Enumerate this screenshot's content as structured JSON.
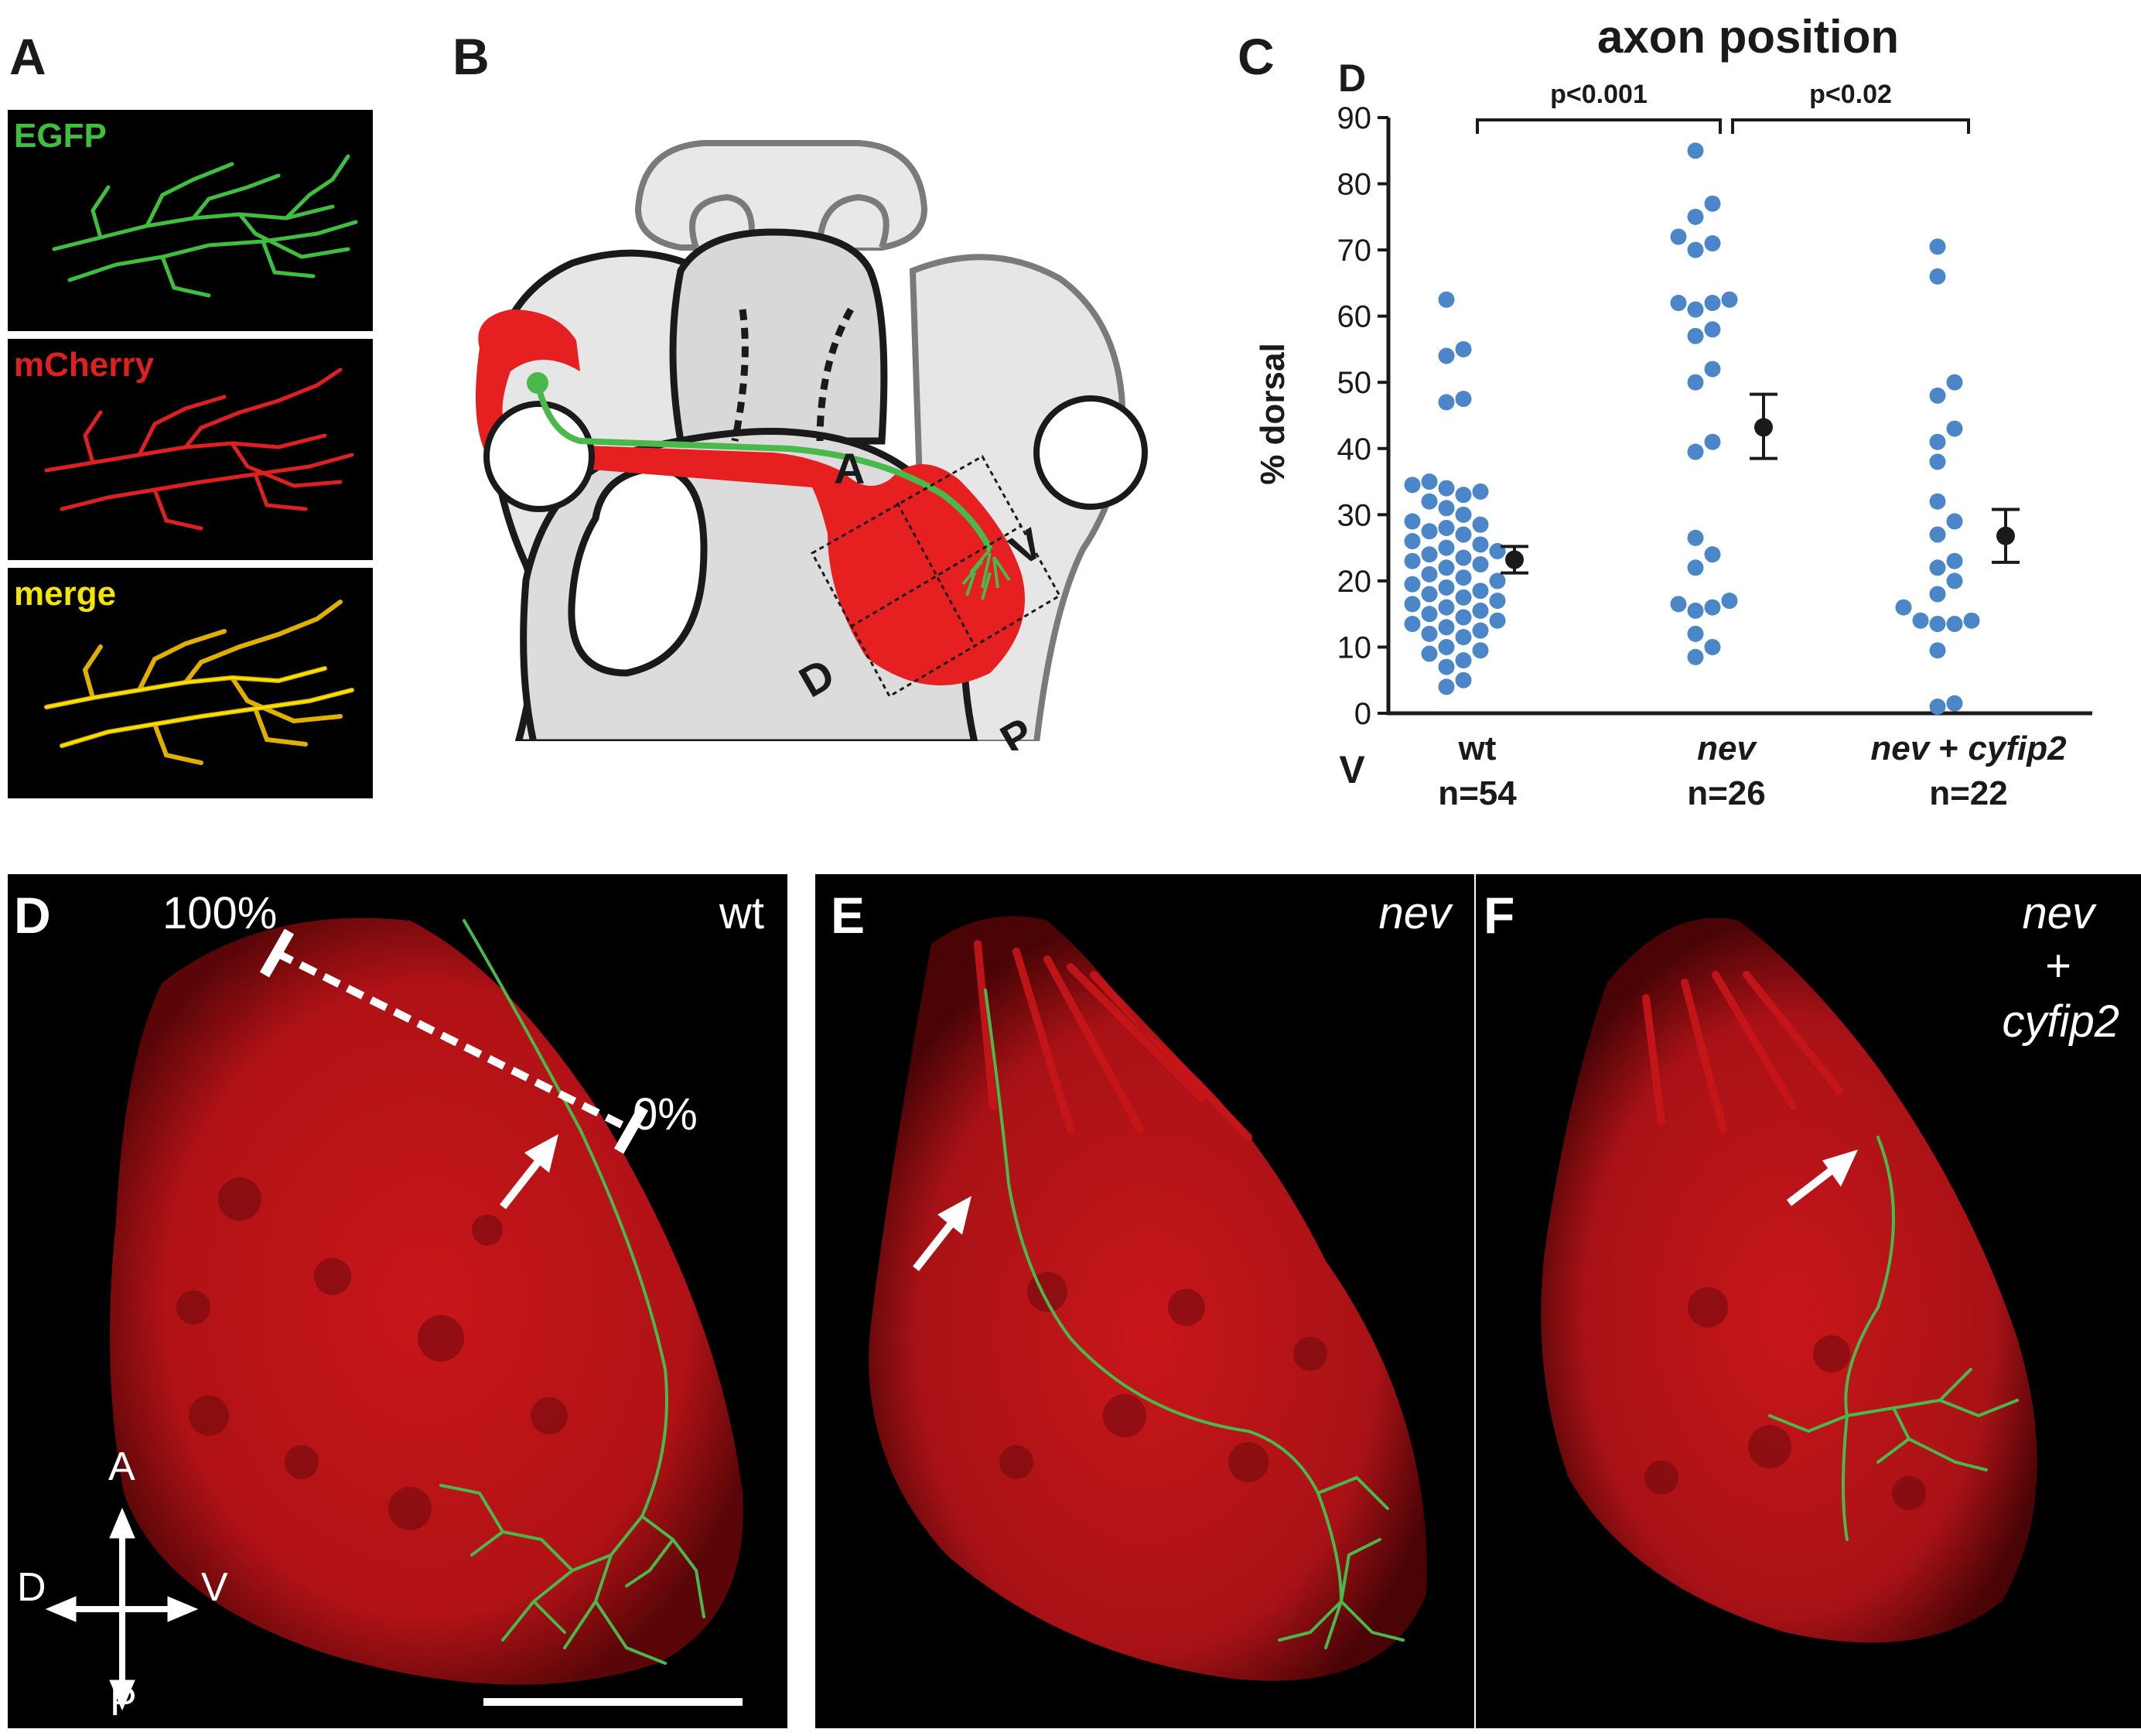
{
  "panels": {
    "A": {
      "letter": "A",
      "channels": [
        {
          "label": "EGFP",
          "color": "#3fbf3f"
        },
        {
          "label": "mCherry",
          "color": "#e02020"
        },
        {
          "label": "merge",
          "color": "#f2e600"
        }
      ]
    },
    "B": {
      "letter": "B",
      "axis_labels": {
        "anterior": "A",
        "ventral": "V",
        "dorsal": "D",
        "posterior": "P"
      }
    },
    "C": {
      "letter": "C",
      "top_marker": "D",
      "bottom_marker": "V"
    },
    "D": {
      "letter": "D",
      "genotype": "wt",
      "scale_top": "100%",
      "scale_bottom": "0%",
      "compass": {
        "up": "A",
        "down": "P",
        "left": "D",
        "right": "V"
      }
    },
    "E": {
      "letter": "E",
      "genotype": "nev"
    },
    "F": {
      "letter": "F",
      "genotype_line1": "nev",
      "genotype_line2": "+",
      "genotype_line3": "cyfip2"
    }
  },
  "chart_data": {
    "type": "scatter",
    "title": "axon position",
    "xlabel": "",
    "ylabel": "% dorsal",
    "ylim": [
      0,
      90
    ],
    "yticks": [
      "0",
      "10",
      "20",
      "30",
      "40",
      "50",
      "60",
      "70",
      "80",
      "90"
    ],
    "categories": [
      {
        "name": "wt",
        "n_label": "n=54",
        "italic": false
      },
      {
        "name": "nev",
        "n_label": "n=26",
        "italic": true
      },
      {
        "name": "nev + cyfip2",
        "n_label": "n=22",
        "italic": true
      }
    ],
    "comparisons": [
      {
        "from": "wt",
        "to": "nev",
        "label": "p<0.001"
      },
      {
        "from": "nev",
        "to": "nev + cyfip2",
        "label": "p<0.02"
      }
    ],
    "point_color": "#4a86c8",
    "series": [
      {
        "group": "wt",
        "values": [
          62.5,
          55,
          54,
          47.5,
          47,
          35,
          34.5,
          34,
          33.5,
          33,
          32,
          31,
          30,
          29,
          28.5,
          28,
          27.5,
          27,
          26,
          25.5,
          25,
          24.5,
          24,
          23.5,
          23,
          22.5,
          22,
          21,
          20.5,
          20,
          19.5,
          19,
          18.5,
          18,
          17.5,
          17,
          16.5,
          16,
          15.5,
          15,
          14.5,
          14,
          13.5,
          13,
          12.5,
          12,
          11.5,
          10,
          9.5,
          9,
          8,
          7,
          5,
          4
        ],
        "mean": 23.2,
        "sem_low": 21.2,
        "sem_high": 25.2
      },
      {
        "group": "nev",
        "values": [
          85,
          77,
          75,
          72,
          71,
          70,
          62.5,
          62,
          62,
          61,
          58,
          57,
          52,
          50,
          41,
          39.5,
          26.5,
          24,
          22,
          17,
          16.5,
          16,
          15.5,
          12,
          10,
          8.5
        ],
        "mean": 43.2,
        "sem_low": 38.5,
        "sem_high": 48.2
      },
      {
        "group": "nev + cyfip2",
        "values": [
          70.5,
          66,
          50,
          48,
          43,
          41,
          38,
          32,
          29,
          27,
          23,
          22,
          20,
          18,
          16,
          14,
          14,
          13.5,
          13.5,
          9.5,
          1.5,
          1
        ],
        "mean": 26.8,
        "sem_low": 22.8,
        "sem_high": 30.8
      }
    ]
  }
}
